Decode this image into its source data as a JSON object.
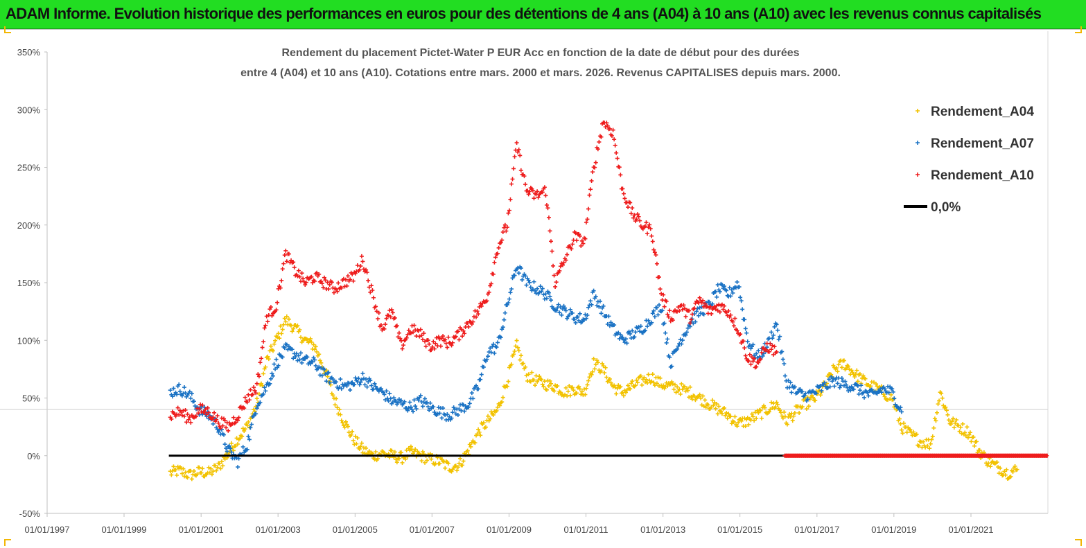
{
  "banner": {
    "text": "ADAM Informe. Evolution historique des performances en euros pour des détentions de 4 ans (A04) à 10 ans (A10) avec les revenus connus capitalisés"
  },
  "colors": {
    "banner_bg": "#22dd22",
    "series_A04": "#f2c200",
    "series_A07": "#1a72c4",
    "series_A10": "#ee1c1c",
    "zero_line": "#000000"
  },
  "chart_data": {
    "type": "scatter",
    "title_lines": [
      "Rendement du placement Pictet-Water P EUR Acc en fonction de la date de début pour des durées",
      "entre 4 (A04) et 10 ans (A10). Cotations entre mars. 2000 et mars. 2026. Revenus CAPITALISES depuis mars. 2000."
    ],
    "xlabel": "",
    "ylabel": "",
    "x_ticks": [
      "01/01/1997",
      "01/01/1999",
      "01/01/2001",
      "01/01/2003",
      "01/01/2005",
      "01/01/2007",
      "01/01/2009",
      "01/01/2011",
      "01/01/2013",
      "01/01/2015",
      "01/01/2017",
      "01/01/2019",
      "01/01/2021"
    ],
    "x_range": [
      "1997-01-01",
      "2023-01-01"
    ],
    "y_ticks": [
      "-50%",
      "0%",
      "50%",
      "100%",
      "150%",
      "200%",
      "250%",
      "300%",
      "350%"
    ],
    "y_range": [
      -50,
      350
    ],
    "grid": false,
    "legend_position": "top-right",
    "legend": [
      "Rendement_A04",
      "Rendement_A07",
      "Rendement_A10",
      "0,0%"
    ],
    "series": [
      {
        "name": "Rendement_A04",
        "marker": "+",
        "points": [
          [
            "2000-03",
            -15
          ],
          [
            "2000-06",
            -13
          ],
          [
            "2000-09",
            -17
          ],
          [
            "2000-12",
            -14
          ],
          [
            "2001-03",
            -15
          ],
          [
            "2001-06",
            -10
          ],
          [
            "2001-09",
            2
          ],
          [
            "2001-12",
            15
          ],
          [
            "2002-03",
            25
          ],
          [
            "2002-06",
            45
          ],
          [
            "2002-09",
            82
          ],
          [
            "2002-12",
            100
          ],
          [
            "2003-03",
            118
          ],
          [
            "2003-06",
            110
          ],
          [
            "2003-09",
            100
          ],
          [
            "2003-12",
            95
          ],
          [
            "2004-03",
            75
          ],
          [
            "2004-06",
            50
          ],
          [
            "2004-09",
            30
          ],
          [
            "2004-12",
            15
          ],
          [
            "2005-03",
            5
          ],
          [
            "2005-06",
            0
          ],
          [
            "2005-09",
            2
          ],
          [
            "2005-12",
            0
          ],
          [
            "2006-03",
            -2
          ],
          [
            "2006-06",
            3
          ],
          [
            "2006-09",
            0
          ],
          [
            "2006-12",
            -3
          ],
          [
            "2007-03",
            -5
          ],
          [
            "2007-06",
            -10
          ],
          [
            "2007-09",
            -8
          ],
          [
            "2007-12",
            5
          ],
          [
            "2008-03",
            20
          ],
          [
            "2008-06",
            30
          ],
          [
            "2008-09",
            40
          ],
          [
            "2008-12",
            65
          ],
          [
            "2009-03",
            95
          ],
          [
            "2009-06",
            70
          ],
          [
            "2009-09",
            65
          ],
          [
            "2009-12",
            62
          ],
          [
            "2010-03",
            60
          ],
          [
            "2010-06",
            55
          ],
          [
            "2010-09",
            58
          ],
          [
            "2010-12",
            55
          ],
          [
            "2011-03",
            80
          ],
          [
            "2011-06",
            75
          ],
          [
            "2011-09",
            60
          ],
          [
            "2011-12",
            55
          ],
          [
            "2012-03",
            60
          ],
          [
            "2012-06",
            65
          ],
          [
            "2012-09",
            68
          ],
          [
            "2012-12",
            62
          ],
          [
            "2013-03",
            60
          ],
          [
            "2013-06",
            58
          ],
          [
            "2013-09",
            55
          ],
          [
            "2013-12",
            50
          ],
          [
            "2014-03",
            45
          ],
          [
            "2014-06",
            40
          ],
          [
            "2014-09",
            35
          ],
          [
            "2014-12",
            28
          ],
          [
            "2015-03",
            30
          ],
          [
            "2015-06",
            35
          ],
          [
            "2015-09",
            40
          ],
          [
            "2015-12",
            45
          ],
          [
            "2016-03",
            30
          ],
          [
            "2016-06",
            38
          ],
          [
            "2016-09",
            45
          ],
          [
            "2016-12",
            50
          ],
          [
            "2017-03",
            60
          ],
          [
            "2017-06",
            75
          ],
          [
            "2017-09",
            80
          ],
          [
            "2017-12",
            72
          ],
          [
            "2018-03",
            65
          ],
          [
            "2018-06",
            60
          ],
          [
            "2018-09",
            55
          ],
          [
            "2018-12",
            50
          ],
          [
            "2019-03",
            25
          ],
          [
            "2019-06",
            18
          ],
          [
            "2019-09",
            12
          ],
          [
            "2019-12",
            10
          ],
          [
            "2020-03",
            55
          ],
          [
            "2020-06",
            30
          ],
          [
            "2020-09",
            25
          ],
          [
            "2020-12",
            20
          ],
          [
            "2021-03",
            5
          ],
          [
            "2021-06",
            -5
          ],
          [
            "2021-09",
            -10
          ],
          [
            "2021-12",
            -15
          ],
          [
            "2022-03",
            -12
          ]
        ]
      },
      {
        "name": "Rendement_A07",
        "marker": "+",
        "points": [
          [
            "2000-03",
            55
          ],
          [
            "2000-06",
            58
          ],
          [
            "2000-09",
            52
          ],
          [
            "2000-12",
            40
          ],
          [
            "2001-03",
            35
          ],
          [
            "2001-06",
            25
          ],
          [
            "2001-09",
            5
          ],
          [
            "2001-12",
            -5
          ],
          [
            "2002-03",
            10
          ],
          [
            "2002-06",
            45
          ],
          [
            "2002-09",
            60
          ],
          [
            "2002-12",
            80
          ],
          [
            "2003-03",
            92
          ],
          [
            "2003-06",
            88
          ],
          [
            "2003-09",
            82
          ],
          [
            "2003-12",
            80
          ],
          [
            "2004-03",
            70
          ],
          [
            "2004-06",
            65
          ],
          [
            "2004-09",
            60
          ],
          [
            "2004-12",
            62
          ],
          [
            "2005-03",
            68
          ],
          [
            "2005-06",
            60
          ],
          [
            "2005-09",
            55
          ],
          [
            "2005-12",
            48
          ],
          [
            "2006-03",
            45
          ],
          [
            "2006-06",
            42
          ],
          [
            "2006-09",
            48
          ],
          [
            "2006-12",
            42
          ],
          [
            "2007-03",
            38
          ],
          [
            "2007-06",
            35
          ],
          [
            "2007-09",
            40
          ],
          [
            "2007-12",
            45
          ],
          [
            "2008-03",
            60
          ],
          [
            "2008-06",
            90
          ],
          [
            "2008-09",
            95
          ],
          [
            "2008-12",
            130
          ],
          [
            "2009-03",
            165
          ],
          [
            "2009-06",
            150
          ],
          [
            "2009-09",
            145
          ],
          [
            "2009-12",
            140
          ],
          [
            "2010-03",
            130
          ],
          [
            "2010-06",
            125
          ],
          [
            "2010-09",
            120
          ],
          [
            "2010-12",
            118
          ],
          [
            "2011-03",
            140
          ],
          [
            "2011-06",
            125
          ],
          [
            "2011-09",
            110
          ],
          [
            "2011-12",
            100
          ],
          [
            "2012-03",
            105
          ],
          [
            "2012-06",
            110
          ],
          [
            "2012-09",
            120
          ],
          [
            "2012-12",
            130
          ],
          [
            "2013-03",
            80
          ],
          [
            "2013-06",
            100
          ],
          [
            "2013-09",
            115
          ],
          [
            "2013-12",
            125
          ],
          [
            "2014-03",
            130
          ],
          [
            "2014-06",
            145
          ],
          [
            "2014-09",
            140
          ],
          [
            "2014-12",
            150
          ],
          [
            "2015-03",
            100
          ],
          [
            "2015-06",
            85
          ],
          [
            "2015-09",
            95
          ],
          [
            "2015-12",
            115
          ],
          [
            "2016-03",
            65
          ],
          [
            "2016-06",
            55
          ],
          [
            "2016-09",
            52
          ],
          [
            "2016-12",
            55
          ],
          [
            "2017-03",
            60
          ],
          [
            "2017-06",
            65
          ],
          [
            "2017-09",
            62
          ],
          [
            "2017-12",
            60
          ],
          [
            "2018-03",
            55
          ],
          [
            "2018-06",
            52
          ],
          [
            "2018-09",
            58
          ],
          [
            "2018-12",
            55
          ],
          [
            "2019-03",
            38
          ]
        ]
      },
      {
        "name": "Rendement_A10",
        "marker": "+",
        "points": [
          [
            "2000-03",
            35
          ],
          [
            "2000-06",
            38
          ],
          [
            "2000-09",
            32
          ],
          [
            "2000-12",
            40
          ],
          [
            "2001-03",
            38
          ],
          [
            "2001-06",
            30
          ],
          [
            "2001-09",
            25
          ],
          [
            "2001-12",
            35
          ],
          [
            "2002-03",
            50
          ],
          [
            "2002-06",
            60
          ],
          [
            "2002-09",
            120
          ],
          [
            "2002-12",
            130
          ],
          [
            "2003-03",
            175
          ],
          [
            "2003-06",
            160
          ],
          [
            "2003-09",
            150
          ],
          [
            "2003-12",
            155
          ],
          [
            "2004-03",
            150
          ],
          [
            "2004-06",
            145
          ],
          [
            "2004-09",
            150
          ],
          [
            "2004-12",
            155
          ],
          [
            "2005-03",
            170
          ],
          [
            "2005-06",
            140
          ],
          [
            "2005-09",
            110
          ],
          [
            "2005-12",
            125
          ],
          [
            "2006-03",
            95
          ],
          [
            "2006-06",
            110
          ],
          [
            "2006-09",
            105
          ],
          [
            "2006-12",
            95
          ],
          [
            "2007-03",
            100
          ],
          [
            "2007-06",
            98
          ],
          [
            "2007-09",
            105
          ],
          [
            "2007-12",
            115
          ],
          [
            "2008-03",
            125
          ],
          [
            "2008-06",
            140
          ],
          [
            "2008-09",
            180
          ],
          [
            "2008-12",
            200
          ],
          [
            "2009-03",
            270
          ],
          [
            "2009-06",
            230
          ],
          [
            "2009-09",
            225
          ],
          [
            "2009-12",
            230
          ],
          [
            "2010-03",
            150
          ],
          [
            "2010-06",
            170
          ],
          [
            "2010-09",
            190
          ],
          [
            "2010-12",
            185
          ],
          [
            "2011-03",
            250
          ],
          [
            "2011-06",
            290
          ],
          [
            "2011-09",
            280
          ],
          [
            "2011-12",
            230
          ],
          [
            "2012-03",
            210
          ],
          [
            "2012-06",
            200
          ],
          [
            "2012-09",
            195
          ],
          [
            "2012-12",
            140
          ],
          [
            "2013-03",
            120
          ],
          [
            "2013-06",
            130
          ],
          [
            "2013-09",
            120
          ],
          [
            "2013-12",
            135
          ],
          [
            "2014-03",
            125
          ],
          [
            "2014-06",
            130
          ],
          [
            "2014-09",
            125
          ],
          [
            "2014-12",
            110
          ],
          [
            "2015-03",
            85
          ],
          [
            "2015-06",
            80
          ],
          [
            "2015-09",
            95
          ],
          [
            "2015-12",
            90
          ]
        ]
      },
      {
        "name": "0,0%",
        "type": "line",
        "x": [
          "2000-03-01",
          "2016-03-01"
        ],
        "y": [
          0,
          0
        ]
      },
      {
        "name": "Rendement_A10 (zero)",
        "marker": "+",
        "x": [
          "2016-03-01",
          "2022-12-31"
        ],
        "y": [
          0,
          0
        ]
      }
    ]
  }
}
